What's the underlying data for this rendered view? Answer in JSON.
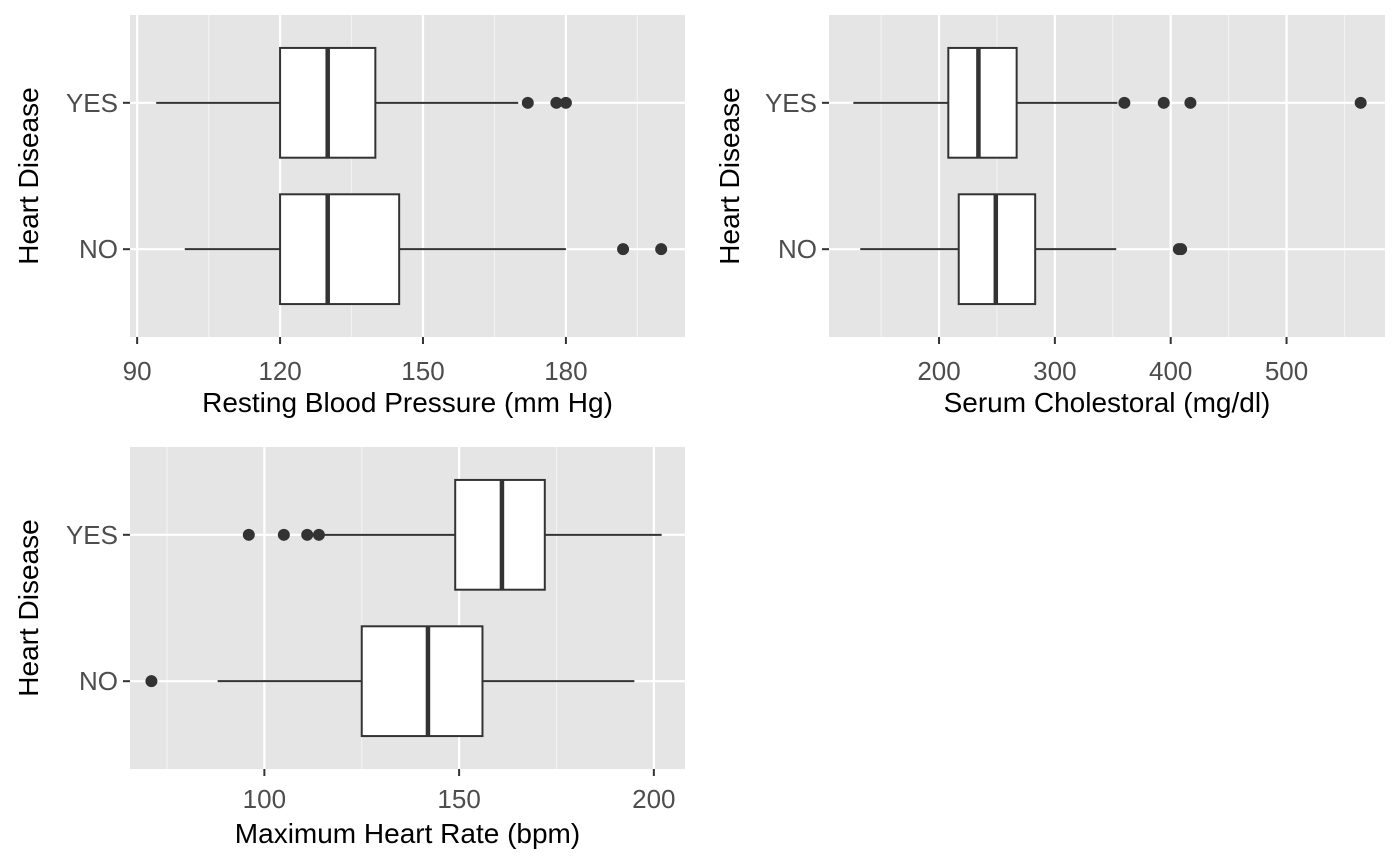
{
  "chart_data": [
    {
      "type": "boxplot",
      "orientation": "horizontal",
      "xlabel": "Resting Blood Pressure (mm Hg)",
      "ylabel": "Heart Disease",
      "xlim": [
        88.5,
        205
      ],
      "xticks": [
        90,
        120,
        150,
        180
      ],
      "categories": [
        "NO",
        "YES"
      ],
      "grid": true,
      "boxes": [
        {
          "category": "NO",
          "whisker_low": 100,
          "q1": 120,
          "median": 130,
          "q3": 145,
          "whisker_high": 180,
          "outliers": [
            192,
            200
          ]
        },
        {
          "category": "YES",
          "whisker_low": 94,
          "q1": 120,
          "median": 130,
          "q3": 140,
          "whisker_high": 170,
          "outliers": [
            172,
            178,
            180
          ]
        }
      ]
    },
    {
      "type": "boxplot",
      "orientation": "horizontal",
      "xlabel": "Serum Cholestoral (mg/dl)",
      "ylabel": "Heart Disease",
      "xlim": [
        105,
        585
      ],
      "xticks": [
        200,
        300,
        400,
        500
      ],
      "categories": [
        "NO",
        "YES"
      ],
      "grid": true,
      "boxes": [
        {
          "category": "NO",
          "whisker_low": 132,
          "q1": 217,
          "median": 249,
          "q3": 283,
          "whisker_high": 353,
          "outliers": [
            407,
            409
          ]
        },
        {
          "category": "YES",
          "whisker_low": 126,
          "q1": 208,
          "median": 234,
          "q3": 267,
          "whisker_high": 354,
          "outliers": [
            360,
            394,
            417,
            564
          ]
        }
      ]
    },
    {
      "type": "boxplot",
      "orientation": "horizontal",
      "xlabel": "Maximum Heart Rate (bpm)",
      "ylabel": "Heart Disease",
      "xlim": [
        65.5,
        208
      ],
      "xticks": [
        100,
        150,
        200
      ],
      "categories": [
        "NO",
        "YES"
      ],
      "grid": true,
      "boxes": [
        {
          "category": "NO",
          "whisker_low": 88,
          "q1": 125,
          "median": 142,
          "q3": 156,
          "whisker_high": 195,
          "outliers": [
            71
          ]
        },
        {
          "category": "YES",
          "whisker_low": 115,
          "q1": 149,
          "median": 161,
          "q3": 172,
          "whisker_high": 202,
          "outliers": [
            96,
            105,
            111,
            114
          ]
        }
      ]
    }
  ],
  "colors": {
    "panel_background": "#e5e5e5",
    "grid_major": "#ffffff",
    "grid_minor": "#f2f2f2",
    "box_fill": "#ffffff",
    "box_line": "#333333",
    "outlier": "#333333",
    "tick_text": "#4d4d4d",
    "title_text": "#000000"
  }
}
